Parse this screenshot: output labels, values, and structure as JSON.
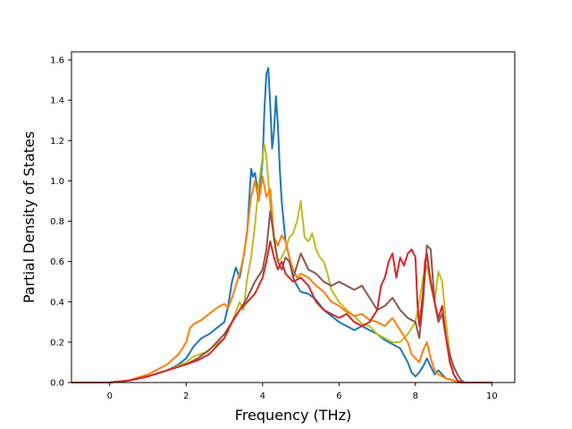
{
  "chart_data": {
    "type": "line",
    "title": "",
    "xlabel": "Frequency (THz)",
    "ylabel": "Partial Density of States",
    "xlim": [
      -1.0,
      10.6
    ],
    "ylim": [
      0.0,
      1.64
    ],
    "xticks": [
      0,
      2,
      4,
      6,
      8,
      10
    ],
    "xtick_labels": [
      "0",
      "2",
      "4",
      "6",
      "8",
      "10"
    ],
    "yticks": [
      0.0,
      0.2,
      0.4,
      0.6,
      0.8,
      1.0,
      1.2,
      1.4,
      1.6
    ],
    "ytick_labels": [
      "0.0",
      "0.2",
      "0.4",
      "0.6",
      "0.8",
      "1.0",
      "1.2",
      "1.4",
      "1.6"
    ],
    "grid": false,
    "series": [
      {
        "color": "#1f77b4",
        "points": [
          [
            -1.0,
            0
          ],
          [
            0,
            0
          ],
          [
            0.5,
            0.01
          ],
          [
            1.0,
            0.03
          ],
          [
            1.5,
            0.06
          ],
          [
            1.8,
            0.09
          ],
          [
            2.0,
            0.12
          ],
          [
            2.2,
            0.18
          ],
          [
            2.4,
            0.22
          ],
          [
            2.6,
            0.24
          ],
          [
            2.8,
            0.27
          ],
          [
            3.0,
            0.3
          ],
          [
            3.1,
            0.38
          ],
          [
            3.2,
            0.5
          ],
          [
            3.3,
            0.57
          ],
          [
            3.4,
            0.52
          ],
          [
            3.5,
            0.62
          ],
          [
            3.6,
            0.75
          ],
          [
            3.7,
            1.06
          ],
          [
            3.75,
            1.02
          ],
          [
            3.8,
            1.04
          ],
          [
            3.85,
            0.98
          ],
          [
            3.9,
            0.92
          ],
          [
            3.95,
            1.0
          ],
          [
            4.0,
            1.1
          ],
          [
            4.05,
            1.36
          ],
          [
            4.1,
            1.53
          ],
          [
            4.15,
            1.56
          ],
          [
            4.2,
            1.38
          ],
          [
            4.25,
            1.16
          ],
          [
            4.3,
            1.25
          ],
          [
            4.35,
            1.42
          ],
          [
            4.4,
            1.28
          ],
          [
            4.45,
            1.06
          ],
          [
            4.5,
            0.9
          ],
          [
            4.6,
            0.7
          ],
          [
            4.7,
            0.62
          ],
          [
            4.8,
            0.52
          ],
          [
            4.9,
            0.48
          ],
          [
            5.0,
            0.45
          ],
          [
            5.2,
            0.44
          ],
          [
            5.4,
            0.41
          ],
          [
            5.6,
            0.36
          ],
          [
            5.8,
            0.33
          ],
          [
            6.0,
            0.3
          ],
          [
            6.2,
            0.28
          ],
          [
            6.4,
            0.26
          ],
          [
            6.6,
            0.28
          ],
          [
            6.8,
            0.26
          ],
          [
            7.0,
            0.24
          ],
          [
            7.2,
            0.21
          ],
          [
            7.4,
            0.19
          ],
          [
            7.6,
            0.17
          ],
          [
            7.8,
            0.1
          ],
          [
            7.9,
            0.05
          ],
          [
            8.0,
            0.03
          ],
          [
            8.1,
            0.05
          ],
          [
            8.2,
            0.08
          ],
          [
            8.3,
            0.12
          ],
          [
            8.4,
            0.08
          ],
          [
            8.5,
            0.04
          ],
          [
            8.6,
            0.06
          ],
          [
            8.7,
            0.04
          ],
          [
            8.8,
            0.02
          ],
          [
            9.0,
            0.01
          ],
          [
            9.1,
            0
          ],
          [
            10.0,
            0
          ]
        ]
      },
      {
        "color": "#bcbd22",
        "points": [
          [
            -1.0,
            0
          ],
          [
            0,
            0
          ],
          [
            0.5,
            0.01
          ],
          [
            1.0,
            0.03
          ],
          [
            1.5,
            0.06
          ],
          [
            2.0,
            0.1
          ],
          [
            2.2,
            0.13
          ],
          [
            2.5,
            0.15
          ],
          [
            2.8,
            0.19
          ],
          [
            3.0,
            0.22
          ],
          [
            3.2,
            0.3
          ],
          [
            3.4,
            0.4
          ],
          [
            3.5,
            0.36
          ],
          [
            3.6,
            0.52
          ],
          [
            3.7,
            0.62
          ],
          [
            3.8,
            0.78
          ],
          [
            3.9,
            0.98
          ],
          [
            4.0,
            1.12
          ],
          [
            4.05,
            1.18
          ],
          [
            4.1,
            1.12
          ],
          [
            4.2,
            0.88
          ],
          [
            4.3,
            0.7
          ],
          [
            4.4,
            0.6
          ],
          [
            4.5,
            0.62
          ],
          [
            4.6,
            0.66
          ],
          [
            4.7,
            0.72
          ],
          [
            4.8,
            0.74
          ],
          [
            4.9,
            0.8
          ],
          [
            5.0,
            0.9
          ],
          [
            5.1,
            0.72
          ],
          [
            5.2,
            0.7
          ],
          [
            5.3,
            0.74
          ],
          [
            5.4,
            0.66
          ],
          [
            5.5,
            0.62
          ],
          [
            5.6,
            0.6
          ],
          [
            5.7,
            0.54
          ],
          [
            5.8,
            0.46
          ],
          [
            6.0,
            0.4
          ],
          [
            6.2,
            0.36
          ],
          [
            6.4,
            0.33
          ],
          [
            6.6,
            0.29
          ],
          [
            6.8,
            0.28
          ],
          [
            7.0,
            0.24
          ],
          [
            7.2,
            0.22
          ],
          [
            7.4,
            0.2
          ],
          [
            7.6,
            0.2
          ],
          [
            7.8,
            0.24
          ],
          [
            8.0,
            0.3
          ],
          [
            8.1,
            0.4
          ],
          [
            8.2,
            0.52
          ],
          [
            8.3,
            0.58
          ],
          [
            8.4,
            0.48
          ],
          [
            8.5,
            0.4
          ],
          [
            8.6,
            0.55
          ],
          [
            8.7,
            0.5
          ],
          [
            8.8,
            0.3
          ],
          [
            8.9,
            0.14
          ],
          [
            9.0,
            0.04
          ],
          [
            9.1,
            0.01
          ],
          [
            9.2,
            0
          ],
          [
            10.0,
            0
          ]
        ]
      },
      {
        "color": "#ff7f0e",
        "points": [
          [
            -1.0,
            0
          ],
          [
            0,
            0
          ],
          [
            0.5,
            0.01
          ],
          [
            1.0,
            0.04
          ],
          [
            1.5,
            0.09
          ],
          [
            1.8,
            0.14
          ],
          [
            2.0,
            0.2
          ],
          [
            2.1,
            0.27
          ],
          [
            2.2,
            0.29
          ],
          [
            2.4,
            0.31
          ],
          [
            2.6,
            0.34
          ],
          [
            2.8,
            0.37
          ],
          [
            3.0,
            0.39
          ],
          [
            3.1,
            0.37
          ],
          [
            3.2,
            0.42
          ],
          [
            3.3,
            0.48
          ],
          [
            3.4,
            0.54
          ],
          [
            3.5,
            0.62
          ],
          [
            3.6,
            0.76
          ],
          [
            3.7,
            0.92
          ],
          [
            3.8,
            1.0
          ],
          [
            3.9,
            0.9
          ],
          [
            4.0,
            1.02
          ],
          [
            4.1,
            0.92
          ],
          [
            4.2,
            0.96
          ],
          [
            4.3,
            0.72
          ],
          [
            4.4,
            0.68
          ],
          [
            4.5,
            0.73
          ],
          [
            4.6,
            0.7
          ],
          [
            4.7,
            0.62
          ],
          [
            4.8,
            0.56
          ],
          [
            4.9,
            0.52
          ],
          [
            5.0,
            0.54
          ],
          [
            5.2,
            0.52
          ],
          [
            5.4,
            0.48
          ],
          [
            5.6,
            0.45
          ],
          [
            5.8,
            0.4
          ],
          [
            6.0,
            0.38
          ],
          [
            6.2,
            0.35
          ],
          [
            6.4,
            0.33
          ],
          [
            6.6,
            0.34
          ],
          [
            6.8,
            0.31
          ],
          [
            7.0,
            0.3
          ],
          [
            7.2,
            0.28
          ],
          [
            7.4,
            0.32
          ],
          [
            7.6,
            0.26
          ],
          [
            7.8,
            0.2
          ],
          [
            7.9,
            0.14
          ],
          [
            8.0,
            0.12
          ],
          [
            8.1,
            0.1
          ],
          [
            8.2,
            0.16
          ],
          [
            8.3,
            0.2
          ],
          [
            8.4,
            0.12
          ],
          [
            8.5,
            0.06
          ],
          [
            8.6,
            0.04
          ],
          [
            8.8,
            0.02
          ],
          [
            9.0,
            0.01
          ],
          [
            9.1,
            0
          ],
          [
            10.0,
            0
          ]
        ]
      },
      {
        "color": "#8c564b",
        "points": [
          [
            -1.0,
            0
          ],
          [
            0,
            0
          ],
          [
            0.5,
            0.01
          ],
          [
            1.0,
            0.03
          ],
          [
            1.5,
            0.06
          ],
          [
            2.0,
            0.09
          ],
          [
            2.3,
            0.12
          ],
          [
            2.6,
            0.16
          ],
          [
            2.8,
            0.2
          ],
          [
            3.0,
            0.24
          ],
          [
            3.2,
            0.3
          ],
          [
            3.4,
            0.36
          ],
          [
            3.6,
            0.42
          ],
          [
            3.8,
            0.5
          ],
          [
            4.0,
            0.56
          ],
          [
            4.1,
            0.66
          ],
          [
            4.2,
            0.85
          ],
          [
            4.3,
            0.72
          ],
          [
            4.4,
            0.6
          ],
          [
            4.5,
            0.56
          ],
          [
            4.6,
            0.62
          ],
          [
            4.7,
            0.6
          ],
          [
            4.8,
            0.52
          ],
          [
            4.9,
            0.58
          ],
          [
            5.0,
            0.64
          ],
          [
            5.2,
            0.56
          ],
          [
            5.4,
            0.54
          ],
          [
            5.6,
            0.5
          ],
          [
            5.8,
            0.48
          ],
          [
            6.0,
            0.5
          ],
          [
            6.2,
            0.48
          ],
          [
            6.4,
            0.46
          ],
          [
            6.6,
            0.48
          ],
          [
            6.8,
            0.42
          ],
          [
            7.0,
            0.36
          ],
          [
            7.2,
            0.38
          ],
          [
            7.4,
            0.42
          ],
          [
            7.6,
            0.36
          ],
          [
            7.8,
            0.32
          ],
          [
            8.0,
            0.3
          ],
          [
            8.1,
            0.22
          ],
          [
            8.2,
            0.4
          ],
          [
            8.3,
            0.68
          ],
          [
            8.4,
            0.66
          ],
          [
            8.5,
            0.4
          ],
          [
            8.6,
            0.3
          ],
          [
            8.7,
            0.34
          ],
          [
            8.8,
            0.22
          ],
          [
            8.9,
            0.14
          ],
          [
            9.0,
            0.08
          ],
          [
            9.1,
            0.04
          ],
          [
            9.2,
            0.01
          ],
          [
            9.3,
            0
          ],
          [
            10.0,
            0
          ]
        ]
      },
      {
        "color": "#d62728",
        "points": [
          [
            -1.0,
            0
          ],
          [
            0,
            0
          ],
          [
            0.5,
            0.01
          ],
          [
            1.0,
            0.03
          ],
          [
            1.5,
            0.06
          ],
          [
            2.0,
            0.09
          ],
          [
            2.3,
            0.11
          ],
          [
            2.6,
            0.14
          ],
          [
            2.8,
            0.18
          ],
          [
            3.0,
            0.22
          ],
          [
            3.2,
            0.3
          ],
          [
            3.4,
            0.36
          ],
          [
            3.6,
            0.4
          ],
          [
            3.8,
            0.44
          ],
          [
            4.0,
            0.52
          ],
          [
            4.1,
            0.6
          ],
          [
            4.2,
            0.7
          ],
          [
            4.3,
            0.62
          ],
          [
            4.4,
            0.56
          ],
          [
            4.5,
            0.6
          ],
          [
            4.6,
            0.54
          ],
          [
            4.8,
            0.5
          ],
          [
            5.0,
            0.52
          ],
          [
            5.2,
            0.48
          ],
          [
            5.4,
            0.4
          ],
          [
            5.6,
            0.36
          ],
          [
            5.8,
            0.34
          ],
          [
            6.0,
            0.32
          ],
          [
            6.2,
            0.34
          ],
          [
            6.4,
            0.3
          ],
          [
            6.6,
            0.28
          ],
          [
            6.8,
            0.3
          ],
          [
            7.0,
            0.36
          ],
          [
            7.1,
            0.48
          ],
          [
            7.2,
            0.52
          ],
          [
            7.3,
            0.6
          ],
          [
            7.4,
            0.64
          ],
          [
            7.5,
            0.52
          ],
          [
            7.6,
            0.62
          ],
          [
            7.7,
            0.58
          ],
          [
            7.8,
            0.64
          ],
          [
            7.9,
            0.66
          ],
          [
            8.0,
            0.62
          ],
          [
            8.05,
            0.4
          ],
          [
            8.1,
            0.28
          ],
          [
            8.2,
            0.45
          ],
          [
            8.25,
            0.6
          ],
          [
            8.3,
            0.64
          ],
          [
            8.4,
            0.5
          ],
          [
            8.5,
            0.4
          ],
          [
            8.6,
            0.32
          ],
          [
            8.7,
            0.38
          ],
          [
            8.8,
            0.22
          ],
          [
            8.9,
            0.1
          ],
          [
            9.0,
            0.04
          ],
          [
            9.1,
            0.01
          ],
          [
            9.2,
            0
          ],
          [
            10.0,
            0
          ]
        ]
      }
    ]
  }
}
